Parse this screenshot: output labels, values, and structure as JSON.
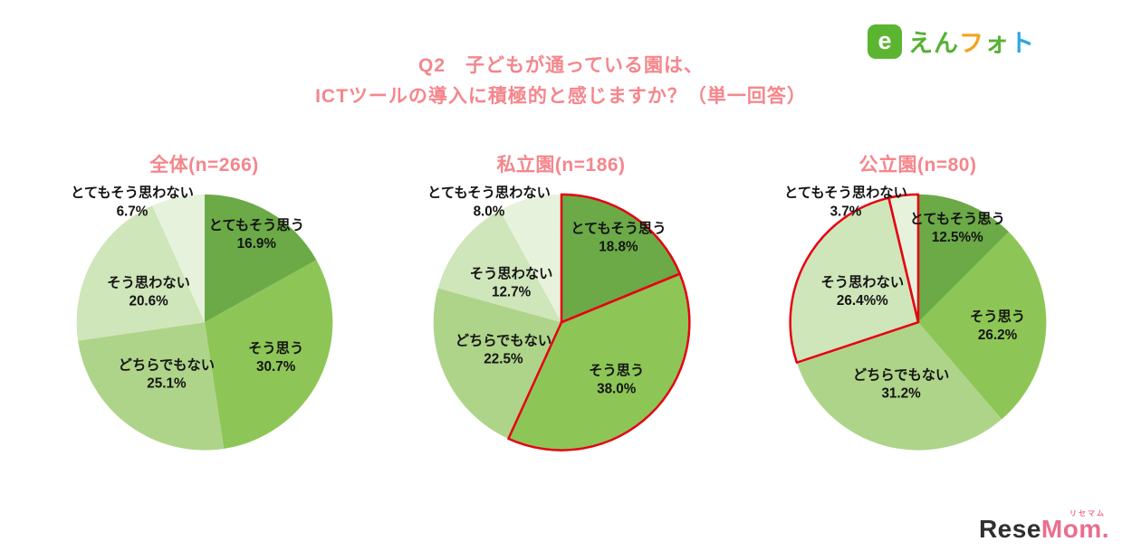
{
  "header": {
    "title_line1": "Q2　子どもが通っている園は、",
    "title_line2": "ICTツールの導入に積極的と感じますか？（単一回答）"
  },
  "logo_enphoto": {
    "mark_letter": "e",
    "chars": [
      {
        "ch": "え",
        "color": "#55b232"
      },
      {
        "ch": "ん",
        "color": "#55b232"
      },
      {
        "ch": "フ",
        "color": "#f5a21c"
      },
      {
        "ch": "ォ",
        "color": "#55b232"
      },
      {
        "ch": "ト",
        "color": "#2ea7de"
      }
    ]
  },
  "logo_resemom": {
    "ruby": "リセマム",
    "part1": "Rese",
    "part2": "Mom",
    "dot": "."
  },
  "colors": {
    "slices": [
      "#6baa47",
      "#8dc656",
      "#aed489",
      "#cfe5ba",
      "#e7f2dc"
    ],
    "highlight_stroke": "#e60012",
    "label_text": "#141414",
    "pink": "#f5868c",
    "enphoto_green": "#5cb531"
  },
  "chart_data": [
    {
      "id": "overall",
      "type": "pie",
      "title": "全体(n=266)",
      "n": 266,
      "categories": [
        "とてもそう思う",
        "そう思う",
        "どちらでもない",
        "そう思わない",
        "とてもそう思わない"
      ],
      "values": [
        16.9,
        30.7,
        25.1,
        20.6,
        6.7
      ],
      "pct_labels": [
        "16.9%",
        "30.7%",
        "25.1%",
        "20.6%",
        "6.7%"
      ],
      "highlight": []
    },
    {
      "id": "private",
      "type": "pie",
      "title": "私立園(n=186)",
      "n": 186,
      "categories": [
        "とてもそう思う",
        "そう思う",
        "どちらでもない",
        "そう思わない",
        "とてもそう思わない"
      ],
      "values": [
        18.8,
        38.0,
        22.5,
        12.7,
        8.0
      ],
      "pct_labels": [
        "18.8%",
        "38.0%",
        "22.5%",
        "12.7%",
        "8.0%"
      ],
      "highlight": [
        0,
        1
      ]
    },
    {
      "id": "public",
      "type": "pie",
      "title": "公立園(n=80)",
      "n": 80,
      "categories": [
        "とてもそう思う",
        "そう思う",
        "どちらでもない",
        "そう思わない",
        "とてもそう思わない"
      ],
      "values": [
        12.5,
        26.2,
        31.2,
        26.4,
        3.7
      ],
      "pct_labels": [
        "12.5%%",
        "26.2%",
        "31.2%",
        "26.4%%",
        "3.7%"
      ],
      "highlight": [
        3,
        4
      ]
    }
  ]
}
